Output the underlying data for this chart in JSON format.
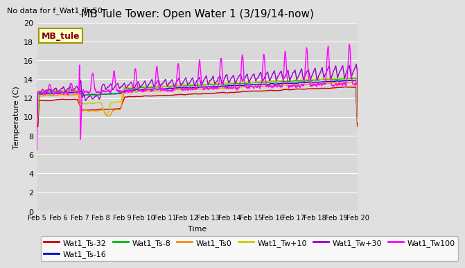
{
  "title": "MB Tule Tower: Open Water 1 (3/19/14-now)",
  "subtitle": "No data for f_Wat1_Tw50",
  "xlabel": "Time",
  "ylabel": "Temperature (C)",
  "ylim": [
    0,
    20
  ],
  "yticks": [
    0,
    2,
    4,
    6,
    8,
    10,
    12,
    14,
    16,
    18,
    20
  ],
  "xtick_labels": [
    "Feb 5",
    "Feb 6",
    "Feb 7",
    "Feb 8",
    "Feb 9",
    "Feb 10",
    "Feb 11",
    "Feb 12",
    "Feb 13",
    "Feb 14",
    "Feb 15",
    "Feb 16",
    "Feb 17",
    "Feb 18",
    "Feb 19",
    "Feb 20"
  ],
  "bg_color": "#e0e0e0",
  "plot_bg_color": "#d8d8d8",
  "series": [
    {
      "name": "Wat1_Ts-32",
      "color": "#cc0000"
    },
    {
      "name": "Wat1_Ts-16",
      "color": "#0000cc"
    },
    {
      "name": "Wat1_Ts-8",
      "color": "#00bb00"
    },
    {
      "name": "Wat1_Ts0",
      "color": "#ff8800"
    },
    {
      "name": "Wat1_Tw+10",
      "color": "#cccc00"
    },
    {
      "name": "Wat1_Tw+30",
      "color": "#9900cc"
    },
    {
      "name": "Wat1_Tw100",
      "color": "#ff00ff"
    }
  ]
}
